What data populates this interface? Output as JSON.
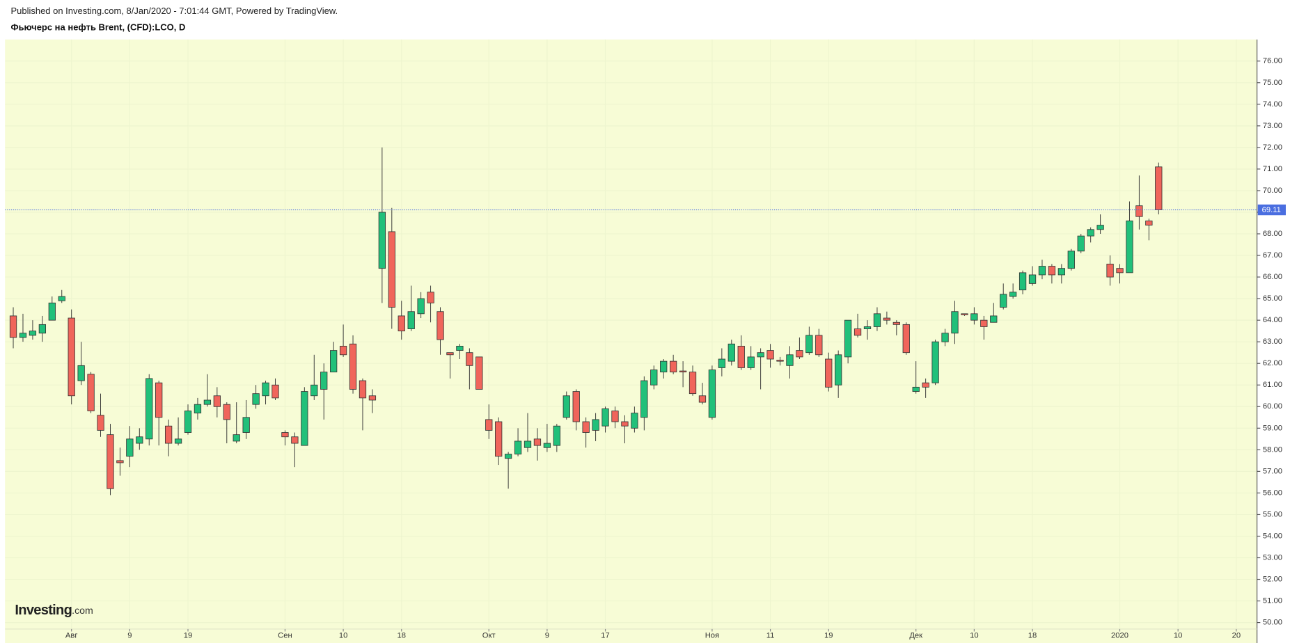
{
  "chart_data": {
    "type": "candlestick",
    "subtitle": "Published on Investing.com, 8/Jan/2020 - 7:01:44 GMT, Powered by TradingView.",
    "title": "Фьючерс на нефть Brent, (CFD):LCO, D",
    "watermark": "Investing",
    "watermark_suffix": ".com",
    "up_color": "#21c07a",
    "down_color": "#f0655b",
    "last_price_color": "#4a6ee0",
    "grid": true,
    "categories": [
      null,
      null,
      null,
      null,
      null,
      null,
      "Авг",
      null,
      null,
      null,
      null,
      null,
      "9",
      null,
      null,
      null,
      null,
      null,
      "19",
      null,
      null,
      null,
      null,
      null,
      null,
      null,
      null,
      null,
      "Сен",
      null,
      null,
      null,
      null,
      null,
      "10",
      null,
      null,
      null,
      null,
      null,
      "18",
      null,
      null,
      null,
      null,
      null,
      null,
      null,
      null,
      "Окт",
      null,
      null,
      null,
      null,
      null,
      "9",
      null,
      null,
      null,
      null,
      null,
      "17",
      null,
      null,
      null,
      null,
      null,
      null,
      null,
      null,
      null,
      null,
      "Ноя",
      null,
      null,
      null,
      null,
      null,
      "11",
      null,
      null,
      null,
      null,
      null,
      "19",
      null,
      null,
      null,
      null,
      null,
      null,
      null,
      null,
      "Дек",
      null,
      null,
      null,
      null,
      null,
      "10",
      null,
      null,
      null,
      null,
      null,
      "18",
      null,
      null,
      null,
      null,
      null,
      null,
      null,
      null,
      "2020",
      null,
      null,
      null,
      null,
      null,
      "10",
      null,
      null,
      null,
      null,
      null,
      "20",
      null,
      null
    ],
    "open": [
      64.2,
      63.2,
      63.3,
      63.4,
      64.0,
      64.9,
      64.1,
      61.2,
      61.5,
      59.6,
      58.7,
      57.5,
      57.7,
      58.3,
      58.5,
      61.1,
      59.1,
      58.3,
      58.8,
      59.7,
      60.1,
      60.5,
      60.1,
      58.4,
      58.8,
      60.1,
      60.5,
      61.0,
      58.8,
      58.6,
      58.2,
      60.5,
      60.8,
      61.6,
      62.8,
      62.9,
      61.2,
      60.5,
      66.4,
      68.1,
      64.2,
      63.6,
      64.3,
      65.3,
      64.4,
      62.5,
      62.6,
      62.5,
      62.3,
      59.4,
      59.3,
      57.6,
      57.8,
      58.1,
      58.5,
      58.1,
      58.2,
      59.5,
      60.7,
      59.3,
      58.9,
      59.1,
      59.8,
      59.3,
      59.0,
      59.5,
      61.0,
      61.6,
      62.1,
      61.65,
      61.6,
      60.5,
      59.5,
      61.8,
      62.1,
      62.8,
      61.8,
      62.3,
      62.6,
      62.15,
      61.9,
      62.6,
      62.5,
      63.3,
      62.2,
      61.0,
      62.3,
      63.6,
      63.6,
      63.7,
      64.1,
      63.9,
      63.8,
      60.7,
      61.1,
      61.1,
      63.0,
      63.4,
      64.3,
      64.0,
      64.0,
      63.9,
      64.6,
      65.1,
      65.4,
      65.7,
      66.1,
      66.5,
      66.1,
      66.4,
      67.2,
      67.9,
      68.2,
      66.6,
      66.4,
      66.2,
      69.3,
      68.6,
      71.1,
      null,
      null,
      null,
      null,
      null,
      null,
      null,
      null,
      null,
      null
    ],
    "high": [
      64.6,
      64.3,
      64.0,
      64.2,
      65.1,
      65.4,
      64.5,
      63.0,
      61.6,
      60.6,
      59.2,
      58.1,
      59.1,
      59.0,
      61.5,
      61.2,
      59.4,
      59.5,
      60.1,
      60.4,
      61.5,
      60.9,
      60.2,
      60.2,
      60.3,
      61.0,
      61.2,
      61.3,
      58.9,
      58.8,
      60.9,
      62.4,
      62.0,
      63.0,
      63.8,
      63.3,
      61.3,
      60.8,
      72.0,
      69.2,
      64.9,
      65.6,
      65.3,
      65.6,
      64.6,
      62.5,
      62.9,
      62.7,
      62.3,
      60.1,
      59.5,
      57.9,
      59.0,
      59.7,
      59.0,
      59.2,
      59.2,
      60.7,
      60.8,
      59.5,
      59.7,
      60.0,
      60.0,
      59.6,
      60.0,
      61.4,
      61.9,
      62.2,
      62.4,
      62.1,
      61.9,
      61.1,
      61.9,
      62.7,
      63.1,
      63.3,
      62.8,
      62.7,
      62.9,
      62.3,
      62.8,
      63.2,
      63.7,
      63.6,
      62.5,
      62.6,
      64.0,
      64.3,
      64.0,
      64.6,
      64.4,
      64.0,
      63.9,
      62.1,
      61.3,
      63.1,
      63.6,
      64.9,
      64.3,
      64.6,
      64.2,
      64.8,
      65.7,
      65.7,
      66.3,
      66.5,
      66.8,
      66.6,
      66.6,
      67.3,
      68.0,
      68.3,
      68.9,
      67.0,
      66.6,
      69.5,
      70.7,
      68.7,
      71.3,
      null,
      null,
      null,
      null,
      null,
      null,
      null,
      null,
      null,
      null
    ],
    "low": [
      62.7,
      63.0,
      63.1,
      63.0,
      64.0,
      64.8,
      60.1,
      61.0,
      59.7,
      58.6,
      55.9,
      56.8,
      57.2,
      58.0,
      58.2,
      58.2,
      57.7,
      58.2,
      58.7,
      59.4,
      60.0,
      59.5,
      58.3,
      58.3,
      58.5,
      59.9,
      60.1,
      60.3,
      58.2,
      57.2,
      58.2,
      60.3,
      59.4,
      61.6,
      62.3,
      60.6,
      58.9,
      59.7,
      64.8,
      63.6,
      63.1,
      63.5,
      64.1,
      63.9,
      62.4,
      61.3,
      62.2,
      60.8,
      60.8,
      58.5,
      57.3,
      56.2,
      57.7,
      57.9,
      57.5,
      57.9,
      57.9,
      59.4,
      58.9,
      58.1,
      58.4,
      58.8,
      59.0,
      58.3,
      58.8,
      58.9,
      60.8,
      61.3,
      61.5,
      60.9,
      60.5,
      60.1,
      59.4,
      61.4,
      61.9,
      61.7,
      61.7,
      60.8,
      61.8,
      61.9,
      61.3,
      62.2,
      62.4,
      62.3,
      60.7,
      60.4,
      62.0,
      63.2,
      63.1,
      63.5,
      63.8,
      63.3,
      62.4,
      60.6,
      60.4,
      61.0,
      62.8,
      62.9,
      64.2,
      63.8,
      63.1,
      63.9,
      64.5,
      65.0,
      65.2,
      65.6,
      65.9,
      65.7,
      65.7,
      66.3,
      67.1,
      67.6,
      68.0,
      65.6,
      65.7,
      66.2,
      68.2,
      67.7,
      68.9,
      null,
      null,
      null,
      null,
      null,
      null,
      null,
      null,
      null,
      null
    ],
    "close": [
      63.2,
      63.4,
      63.5,
      63.8,
      64.8,
      65.1,
      60.5,
      61.9,
      59.8,
      58.9,
      56.2,
      57.4,
      58.5,
      58.6,
      61.3,
      59.5,
      58.3,
      58.5,
      59.8,
      60.1,
      60.3,
      60.0,
      59.4,
      58.7,
      59.5,
      60.6,
      61.1,
      60.4,
      58.6,
      58.3,
      60.7,
      61.0,
      61.6,
      62.6,
      62.4,
      60.8,
      60.4,
      60.3,
      69.0,
      64.6,
      63.5,
      64.4,
      65.0,
      64.8,
      63.1,
      62.4,
      62.8,
      61.9,
      60.8,
      58.9,
      57.7,
      57.8,
      58.4,
      58.4,
      58.2,
      58.3,
      59.1,
      60.5,
      59.3,
      58.8,
      59.4,
      59.9,
      59.3,
      59.1,
      59.7,
      61.2,
      61.7,
      62.1,
      61.6,
      61.6,
      60.6,
      60.2,
      61.7,
      62.2,
      62.9,
      61.8,
      62.3,
      62.5,
      62.2,
      62.1,
      62.4,
      62.3,
      63.3,
      62.4,
      60.9,
      62.4,
      64.0,
      63.3,
      63.7,
      64.3,
      64.0,
      63.8,
      62.5,
      60.9,
      60.9,
      63.0,
      63.4,
      64.4,
      64.25,
      64.3,
      63.7,
      64.2,
      65.2,
      65.3,
      66.2,
      66.1,
      66.5,
      66.1,
      66.4,
      67.2,
      67.9,
      68.2,
      68.4,
      66.0,
      66.2,
      68.6,
      68.8,
      68.4,
      69.11,
      null,
      null,
      null,
      null,
      null,
      null,
      null,
      null,
      null,
      null
    ],
    "ylim": [
      49.7,
      77.0
    ],
    "yticks": [
      {
        "value": 50,
        "label": "50.00"
      },
      {
        "value": 51,
        "label": "51.00"
      },
      {
        "value": 52,
        "label": "52.00"
      },
      {
        "value": 53,
        "label": "53.00"
      },
      {
        "value": 54,
        "label": "54.00"
      },
      {
        "value": 55,
        "label": "55.00"
      },
      {
        "value": 56,
        "label": "56.00"
      },
      {
        "value": 57,
        "label": "57.00"
      },
      {
        "value": 58,
        "label": "58.00"
      },
      {
        "value": 59,
        "label": "59.00"
      },
      {
        "value": 60,
        "label": "60.00"
      },
      {
        "value": 61,
        "label": "61.00"
      },
      {
        "value": 62,
        "label": "62.00"
      },
      {
        "value": 63,
        "label": "63.00"
      },
      {
        "value": 64,
        "label": "64.00"
      },
      {
        "value": 65,
        "label": "65.00"
      },
      {
        "value": 66,
        "label": "66.00"
      },
      {
        "value": 67,
        "label": "67.00"
      },
      {
        "value": 68,
        "label": "68.00"
      },
      {
        "value": 69,
        "label": "69.00"
      },
      {
        "value": 70,
        "label": "70.00"
      },
      {
        "value": 71,
        "label": "71.00"
      },
      {
        "value": 72,
        "label": "72.00"
      },
      {
        "value": 73,
        "label": "73.00"
      },
      {
        "value": 74,
        "label": "74.00"
      },
      {
        "value": 75,
        "label": "75.00"
      },
      {
        "value": 76,
        "label": "76.00"
      }
    ]
  }
}
